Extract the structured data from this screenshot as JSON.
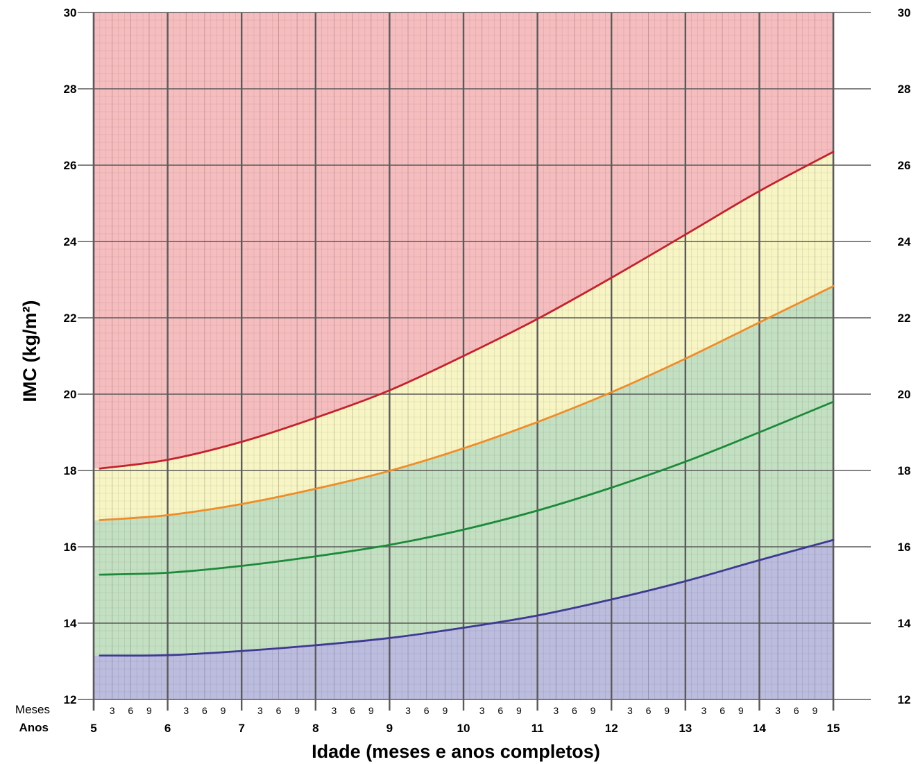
{
  "chart_data": {
    "type": "line",
    "xlabel": "Idade (meses e anos completos)",
    "ylabel": "IMC (kg/m²)",
    "xlim": [
      5,
      15
    ],
    "ylim": [
      12,
      30
    ],
    "x_major_ticks": [
      "5",
      "6",
      "7",
      "8",
      "9",
      "10",
      "11",
      "12",
      "13",
      "14",
      "15"
    ],
    "x_month_ticks": [
      "3",
      "6",
      "9"
    ],
    "y_ticks": [
      "12",
      "14",
      "16",
      "18",
      "20",
      "22",
      "24",
      "26",
      "28",
      "30"
    ],
    "row_labels": {
      "months": "Meses",
      "years": "Anos"
    },
    "grid": true,
    "x": [
      5.083,
      6,
      7,
      8,
      9,
      10,
      11,
      12,
      13,
      14,
      15
    ],
    "series": [
      {
        "key": "red",
        "color": "#c4222c",
        "values": [
          18.05,
          18.28,
          18.75,
          19.38,
          20.1,
          21.0,
          21.97,
          23.05,
          24.18,
          25.32,
          26.35
        ]
      },
      {
        "key": "orange",
        "color": "#f08c26",
        "values": [
          16.7,
          16.83,
          17.12,
          17.52,
          17.99,
          18.58,
          19.27,
          20.05,
          20.93,
          21.88,
          22.83
        ]
      },
      {
        "key": "green",
        "color": "#1b8a3a",
        "values": [
          15.27,
          15.32,
          15.5,
          15.75,
          16.05,
          16.45,
          16.95,
          17.55,
          18.23,
          19.0,
          19.8
        ]
      },
      {
        "key": "purple",
        "color": "#3e3a93",
        "values": [
          13.15,
          13.16,
          13.27,
          13.42,
          13.61,
          13.88,
          14.2,
          14.62,
          15.1,
          15.65,
          16.18
        ]
      }
    ],
    "zones": [
      {
        "key": "above-red",
        "color": "#f6bdbf"
      },
      {
        "key": "red-to-orange",
        "color": "#f7f5c4"
      },
      {
        "key": "orange-to-purple",
        "color": "#c4e0c2"
      },
      {
        "key": "below-purple",
        "color": "#bcbcdf"
      }
    ]
  }
}
